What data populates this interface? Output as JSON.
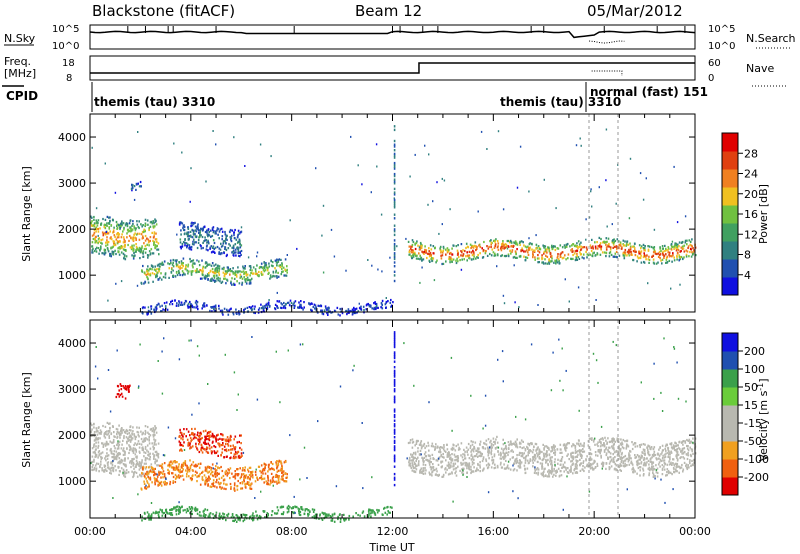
{
  "header": {
    "station": "Blackstone (fitACF)",
    "beam": "Beam 12",
    "date": "05/Mar/2012"
  },
  "sky_panel": {
    "left_label": "N.Sky",
    "right_label": "N.Search",
    "left_ticks": [
      "10^5",
      "10^0"
    ],
    "right_ticks": [
      "10^5",
      "10^0"
    ]
  },
  "freq_panel": {
    "left_label_top": "Freq.",
    "left_label_unit": "[MHz]",
    "left_ticks": [
      "18",
      "8"
    ],
    "right_label": "Nave",
    "right_ticks": [
      "60",
      "0"
    ]
  },
  "cpid_panel": {
    "label": "CPID",
    "segments": [
      "themis (tau) 3310",
      "themis (tau) 3310",
      "normal (fast) 151"
    ]
  },
  "colors": {
    "power_scale": [
      "#1010e0",
      "#2050b0",
      "#308080",
      "#40a060",
      "#70c040",
      "#f0c020",
      "#f08020",
      "#e04010",
      "#e00000"
    ],
    "velocity_scale": [
      "#1010e0",
      "#2050b0",
      "#3aa04a",
      "#6acc3a",
      "#b8b8b0",
      "#b8b8b0",
      "#f0a020",
      "#f06010",
      "#e00000"
    ],
    "ground_scatter": "#b8b8b0"
  },
  "chart_data": [
    {
      "type": "heatmap",
      "title": "",
      "xlabel": "Time UT",
      "ylabel": "Slant Range [km]",
      "quantity": "Power",
      "colorbar_label": "Power [dB]",
      "colorbar_ticks": [
        "4",
        "8",
        "12",
        "16",
        "20",
        "24",
        "28"
      ],
      "xlim": [
        0,
        24
      ],
      "ylim": [
        200,
        4500
      ],
      "x_ticks": [
        "00:00",
        "04:00",
        "08:00",
        "12:00",
        "16:00",
        "20:00",
        "00:00"
      ],
      "y_ticks": [
        "1000",
        "2000",
        "3000",
        "4000"
      ],
      "echo_bands": [
        {
          "t_start": 0.0,
          "t_end": 2.7,
          "range_start": 1450,
          "range_end": 2300,
          "peak_power": 24
        },
        {
          "t_start": 1.6,
          "t_end": 2.0,
          "range_start": 2950,
          "range_end": 3150,
          "peak_power": 8
        },
        {
          "t_start": 2.0,
          "t_end": 7.8,
          "range_start": 900,
          "range_end": 1300,
          "peak_power": 20
        },
        {
          "t_start": 3.5,
          "t_end": 6.0,
          "range_start": 1500,
          "range_end": 2100,
          "peak_power": 10
        },
        {
          "t_start": 12.6,
          "t_end": 24.0,
          "range_start": 1350,
          "range_end": 1750,
          "peak_power": 28
        },
        {
          "t_start": 2.0,
          "t_end": 12.0,
          "range_start": 220,
          "range_end": 400,
          "peak_power": 6
        }
      ]
    },
    {
      "type": "heatmap",
      "title": "",
      "xlabel": "Time UT",
      "ylabel": "Slant Range [km]",
      "quantity": "Velocity",
      "colorbar_label": "Velocity [m s^-1]",
      "colorbar_ticks": [
        "200",
        "100",
        "50",
        "15",
        "-15",
        "-50",
        "-100",
        "-200"
      ],
      "xlim": [
        0,
        24
      ],
      "ylim": [
        200,
        4500
      ],
      "x_ticks": [
        "00:00",
        "04:00",
        "08:00",
        "12:00",
        "16:00",
        "20:00",
        "00:00"
      ],
      "y_ticks": [
        "1000",
        "2000",
        "3000",
        "4000"
      ],
      "echo_bands": [
        {
          "t_start": 0.0,
          "t_end": 2.7,
          "range_start": 1200,
          "range_end": 2300,
          "velocity": 0,
          "ground_scatter": true
        },
        {
          "t_start": 1.0,
          "t_end": 1.6,
          "range_start": 2900,
          "range_end": 3200,
          "velocity": -200
        },
        {
          "t_start": 2.0,
          "t_end": 7.8,
          "range_start": 900,
          "range_end": 1400,
          "velocity": -50
        },
        {
          "t_start": 3.5,
          "t_end": 6.0,
          "range_start": 1600,
          "range_end": 2100,
          "velocity": -100
        },
        {
          "t_start": 12.6,
          "t_end": 24.0,
          "range_start": 1200,
          "range_end": 1900,
          "velocity": 0,
          "ground_scatter": true
        },
        {
          "t_start": 2.0,
          "t_end": 12.0,
          "range_start": 220,
          "range_end": 400,
          "velocity": 50
        }
      ]
    }
  ]
}
